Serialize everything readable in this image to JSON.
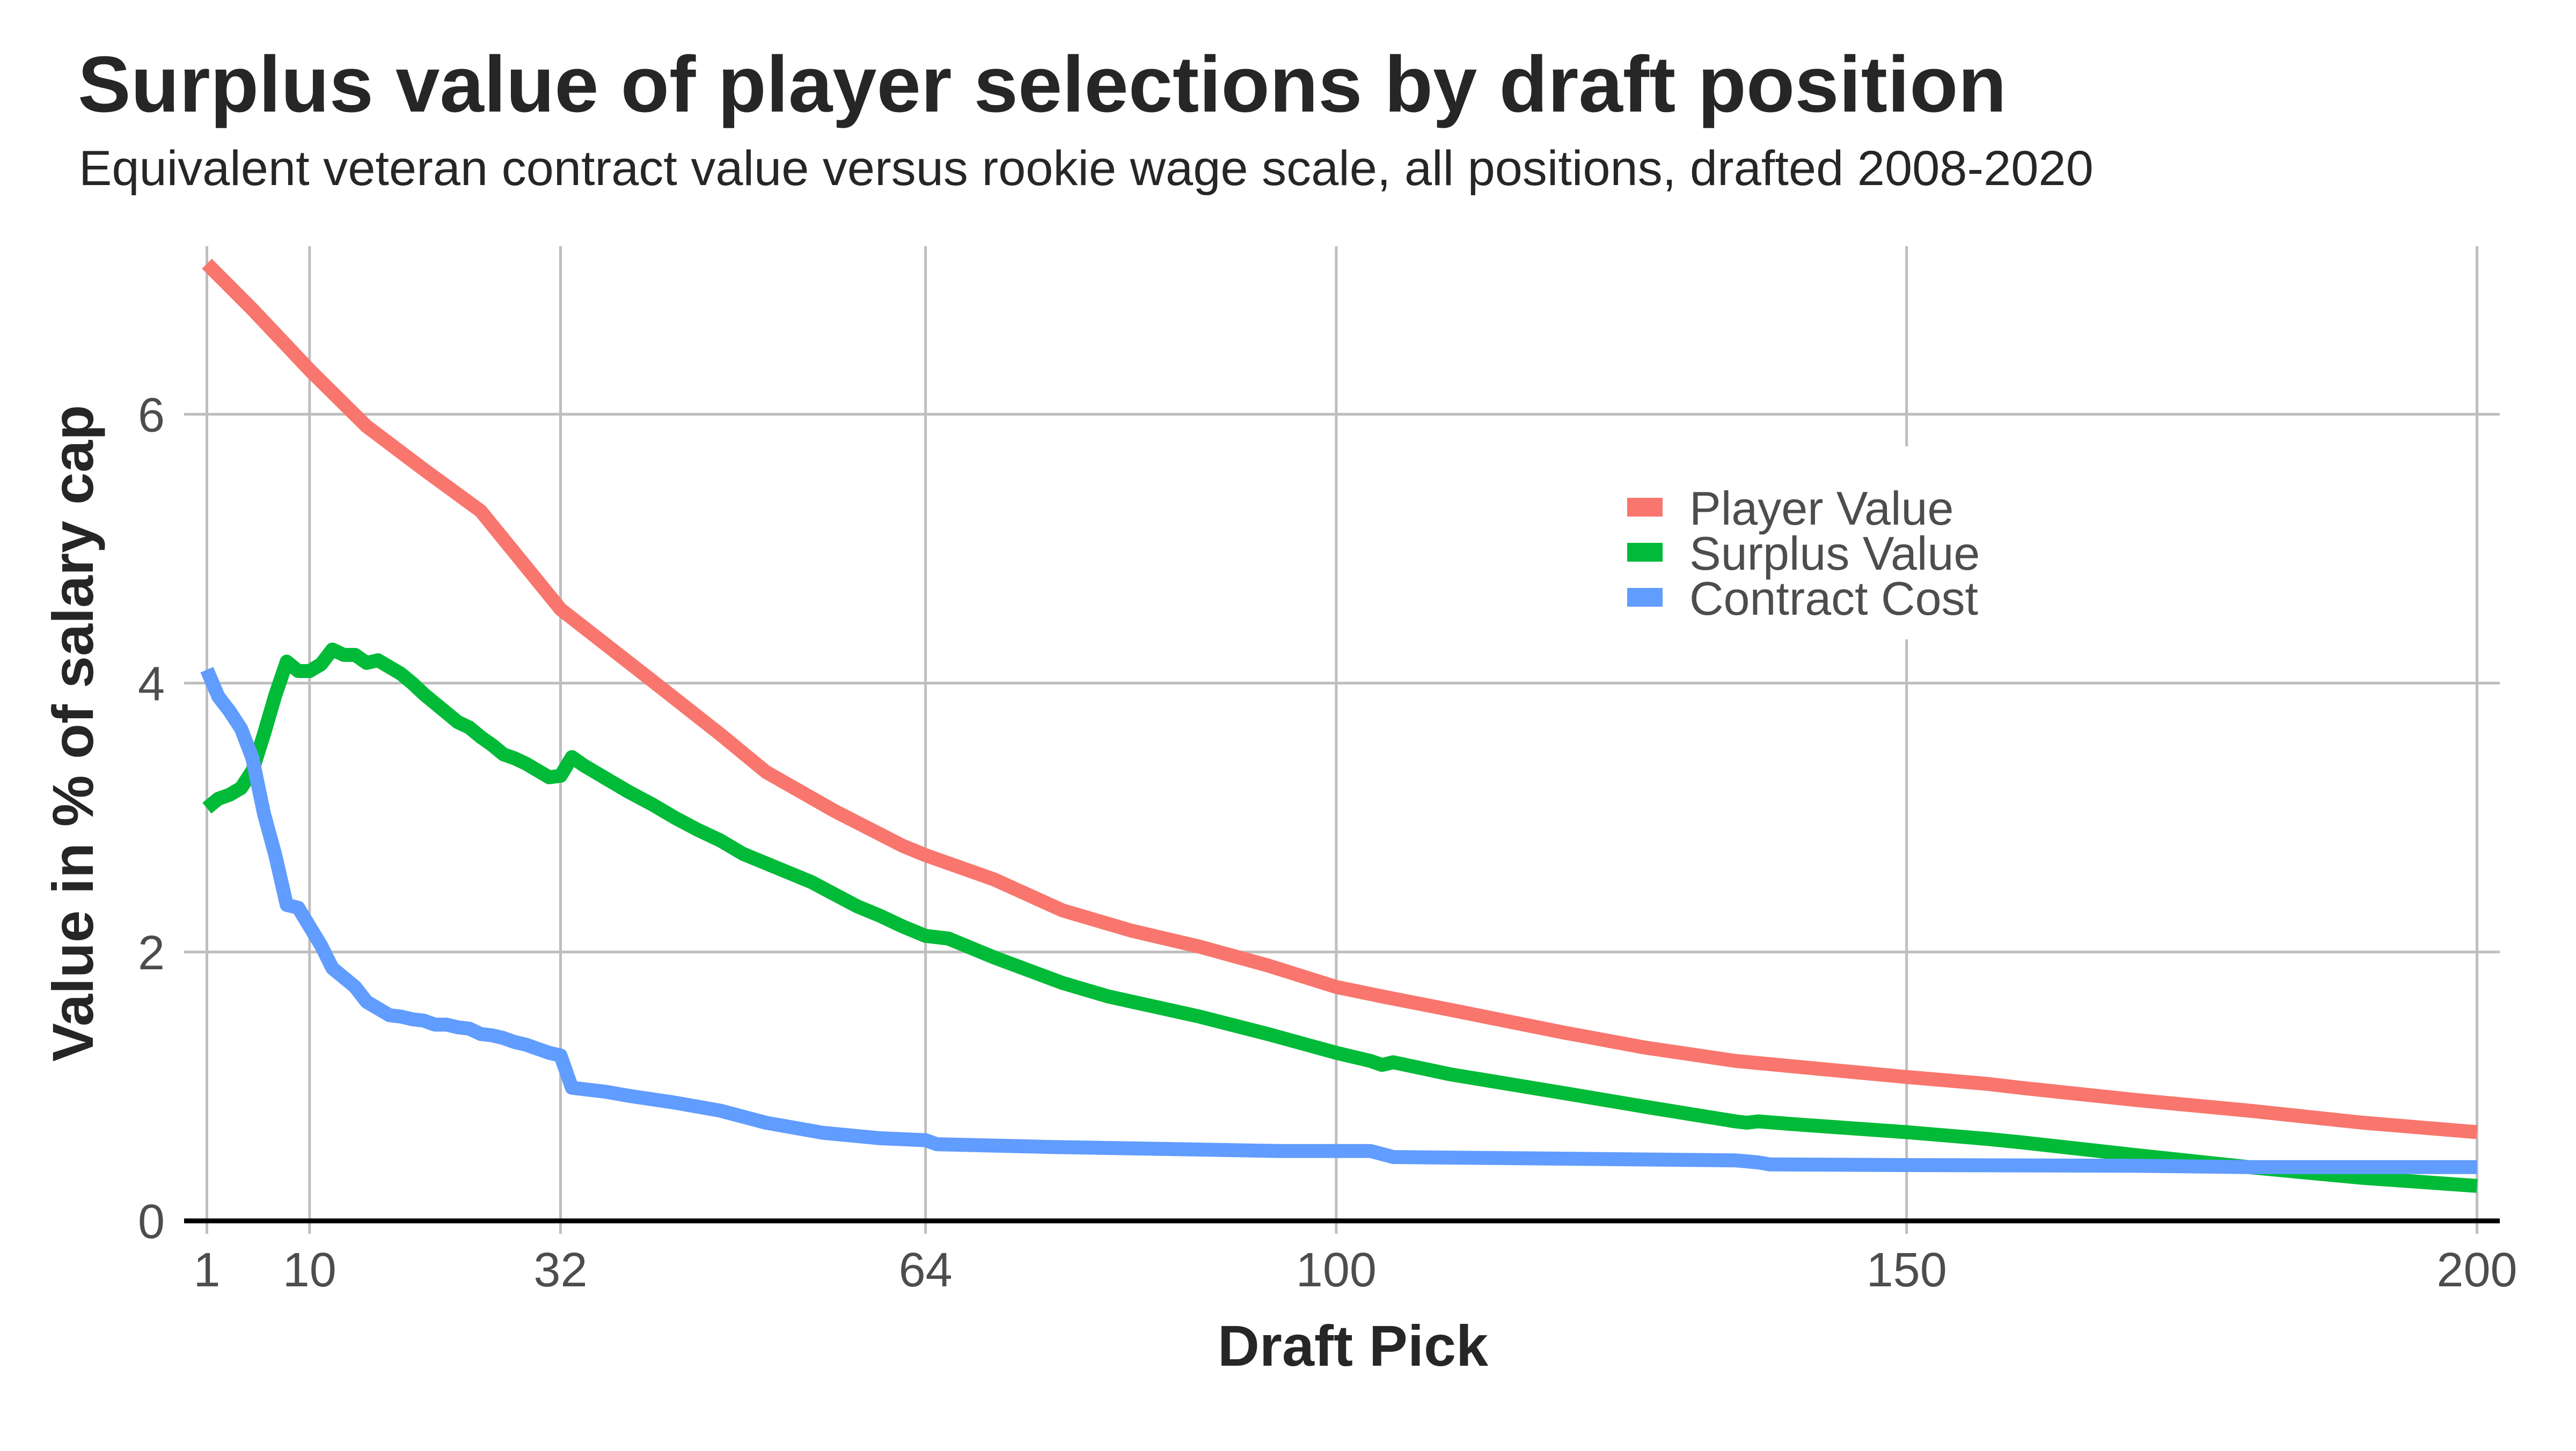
{
  "chart_data": {
    "type": "line",
    "title": "Surplus value of player selections by draft position",
    "subtitle": "Equivalent veteran contract value versus rookie wage scale, all positions, drafted 2008-2020",
    "xlabel": "Draft Pick",
    "ylabel": "Value in % of salary cap",
    "xlim": [
      -1,
      202
    ],
    "ylim": [
      0,
      7.25
    ],
    "x_ticks": [
      1,
      10,
      32,
      64,
      100,
      150,
      200
    ],
    "y_ticks": [
      0,
      2,
      4,
      6
    ],
    "grid": true,
    "legend_position": "inside-top-right",
    "series": [
      {
        "name": "Player Value",
        "color": "#F8766D",
        "points": [
          [
            1,
            7.12
          ],
          [
            5,
            6.78
          ],
          [
            10,
            6.33
          ],
          [
            15,
            5.91
          ],
          [
            20,
            5.59
          ],
          [
            25,
            5.28
          ],
          [
            32,
            4.55
          ],
          [
            40,
            4.02
          ],
          [
            46,
            3.62
          ],
          [
            50,
            3.34
          ],
          [
            56,
            3.05
          ],
          [
            62,
            2.79
          ],
          [
            64,
            2.72
          ],
          [
            70,
            2.54
          ],
          [
            76,
            2.31
          ],
          [
            82,
            2.16
          ],
          [
            88,
            2.04
          ],
          [
            94,
            1.9
          ],
          [
            100,
            1.74
          ],
          [
            104,
            1.67
          ],
          [
            110,
            1.57
          ],
          [
            120,
            1.4
          ],
          [
            127,
            1.29
          ],
          [
            135,
            1.19
          ],
          [
            140,
            1.15
          ],
          [
            150,
            1.07
          ],
          [
            157,
            1.02
          ],
          [
            160,
            0.99
          ],
          [
            170,
            0.9
          ],
          [
            180,
            0.82
          ],
          [
            190,
            0.73
          ],
          [
            200,
            0.66
          ]
        ]
      },
      {
        "name": "Surplus Value",
        "color": "#00BA38",
        "points": [
          [
            1,
            3.07
          ],
          [
            2,
            3.14
          ],
          [
            3,
            3.17
          ],
          [
            4,
            3.22
          ],
          [
            5,
            3.35
          ],
          [
            6,
            3.62
          ],
          [
            7,
            3.91
          ],
          [
            8,
            4.16
          ],
          [
            9,
            4.09
          ],
          [
            10,
            4.09
          ],
          [
            11,
            4.14
          ],
          [
            12,
            4.25
          ],
          [
            13,
            4.21
          ],
          [
            14,
            4.21
          ],
          [
            15,
            4.15
          ],
          [
            16,
            4.17
          ],
          [
            17,
            4.12
          ],
          [
            18,
            4.07
          ],
          [
            19,
            4.0
          ],
          [
            20,
            3.92
          ],
          [
            21,
            3.85
          ],
          [
            22,
            3.78
          ],
          [
            23,
            3.71
          ],
          [
            24,
            3.67
          ],
          [
            25,
            3.6
          ],
          [
            26,
            3.54
          ],
          [
            27,
            3.47
          ],
          [
            28,
            3.44
          ],
          [
            29,
            3.4
          ],
          [
            30,
            3.35
          ],
          [
            31,
            3.3
          ],
          [
            32,
            3.31
          ],
          [
            33,
            3.45
          ],
          [
            34,
            3.39
          ],
          [
            35,
            3.34
          ],
          [
            36,
            3.29
          ],
          [
            37,
            3.24
          ],
          [
            38,
            3.19
          ],
          [
            40,
            3.1
          ],
          [
            42,
            3.0
          ],
          [
            44,
            2.91
          ],
          [
            46,
            2.83
          ],
          [
            48,
            2.73
          ],
          [
            50,
            2.66
          ],
          [
            52,
            2.59
          ],
          [
            54,
            2.52
          ],
          [
            56,
            2.43
          ],
          [
            58,
            2.34
          ],
          [
            60,
            2.27
          ],
          [
            62,
            2.19
          ],
          [
            64,
            2.12
          ],
          [
            66,
            2.1
          ],
          [
            70,
            1.96
          ],
          [
            76,
            1.77
          ],
          [
            80,
            1.67
          ],
          [
            88,
            1.52
          ],
          [
            94,
            1.39
          ],
          [
            100,
            1.25
          ],
          [
            103,
            1.19
          ],
          [
            104,
            1.16
          ],
          [
            105,
            1.18
          ],
          [
            110,
            1.09
          ],
          [
            120,
            0.95
          ],
          [
            127,
            0.85
          ],
          [
            135,
            0.74
          ],
          [
            136,
            0.73
          ],
          [
            137,
            0.74
          ],
          [
            140,
            0.72
          ],
          [
            150,
            0.66
          ],
          [
            157,
            0.61
          ],
          [
            160,
            0.585
          ],
          [
            170,
            0.49
          ],
          [
            180,
            0.4
          ],
          [
            190,
            0.32
          ],
          [
            200,
            0.26
          ]
        ]
      },
      {
        "name": "Contract Cost",
        "color": "#619CFF",
        "points": [
          [
            1,
            4.1
          ],
          [
            2,
            3.9
          ],
          [
            3,
            3.79
          ],
          [
            4,
            3.66
          ],
          [
            5,
            3.44
          ],
          [
            6,
            3.03
          ],
          [
            7,
            2.72
          ],
          [
            8,
            2.35
          ],
          [
            9,
            2.33
          ],
          [
            10,
            2.19
          ],
          [
            11,
            2.05
          ],
          [
            12,
            1.88
          ],
          [
            13,
            1.81
          ],
          [
            14,
            1.74
          ],
          [
            15,
            1.63
          ],
          [
            16,
            1.58
          ],
          [
            17,
            1.53
          ],
          [
            18,
            1.52
          ],
          [
            19,
            1.5
          ],
          [
            20,
            1.49
          ],
          [
            21,
            1.46
          ],
          [
            22,
            1.46
          ],
          [
            23,
            1.44
          ],
          [
            24,
            1.43
          ],
          [
            25,
            1.39
          ],
          [
            26,
            1.38
          ],
          [
            27,
            1.36
          ],
          [
            28,
            1.33
          ],
          [
            29,
            1.31
          ],
          [
            30,
            1.28
          ],
          [
            31,
            1.25
          ],
          [
            32,
            1.23
          ],
          [
            33,
            0.99
          ],
          [
            34,
            0.98
          ],
          [
            36,
            0.96
          ],
          [
            38,
            0.93
          ],
          [
            42,
            0.88
          ],
          [
            46,
            0.82
          ],
          [
            50,
            0.73
          ],
          [
            55,
            0.655
          ],
          [
            60,
            0.615
          ],
          [
            64,
            0.6
          ],
          [
            65,
            0.57
          ],
          [
            75,
            0.55
          ],
          [
            85,
            0.535
          ],
          [
            95,
            0.52
          ],
          [
            103,
            0.52
          ],
          [
            105,
            0.475
          ],
          [
            135,
            0.45
          ],
          [
            137,
            0.435
          ],
          [
            138,
            0.42
          ],
          [
            150,
            0.415
          ],
          [
            170,
            0.41
          ],
          [
            180,
            0.4
          ],
          [
            200,
            0.4
          ]
        ]
      }
    ]
  },
  "legend": {
    "items": [
      {
        "label": "Player Value",
        "color": "#F8766D"
      },
      {
        "label": "Surplus Value",
        "color": "#00BA38"
      },
      {
        "label": "Contract Cost",
        "color": "#619CFF"
      }
    ]
  },
  "axis": {
    "x_tick_labels": [
      "1",
      "10",
      "32",
      "64",
      "100",
      "150",
      "200"
    ],
    "y_tick_labels": [
      "0",
      "2",
      "4",
      "6"
    ]
  }
}
